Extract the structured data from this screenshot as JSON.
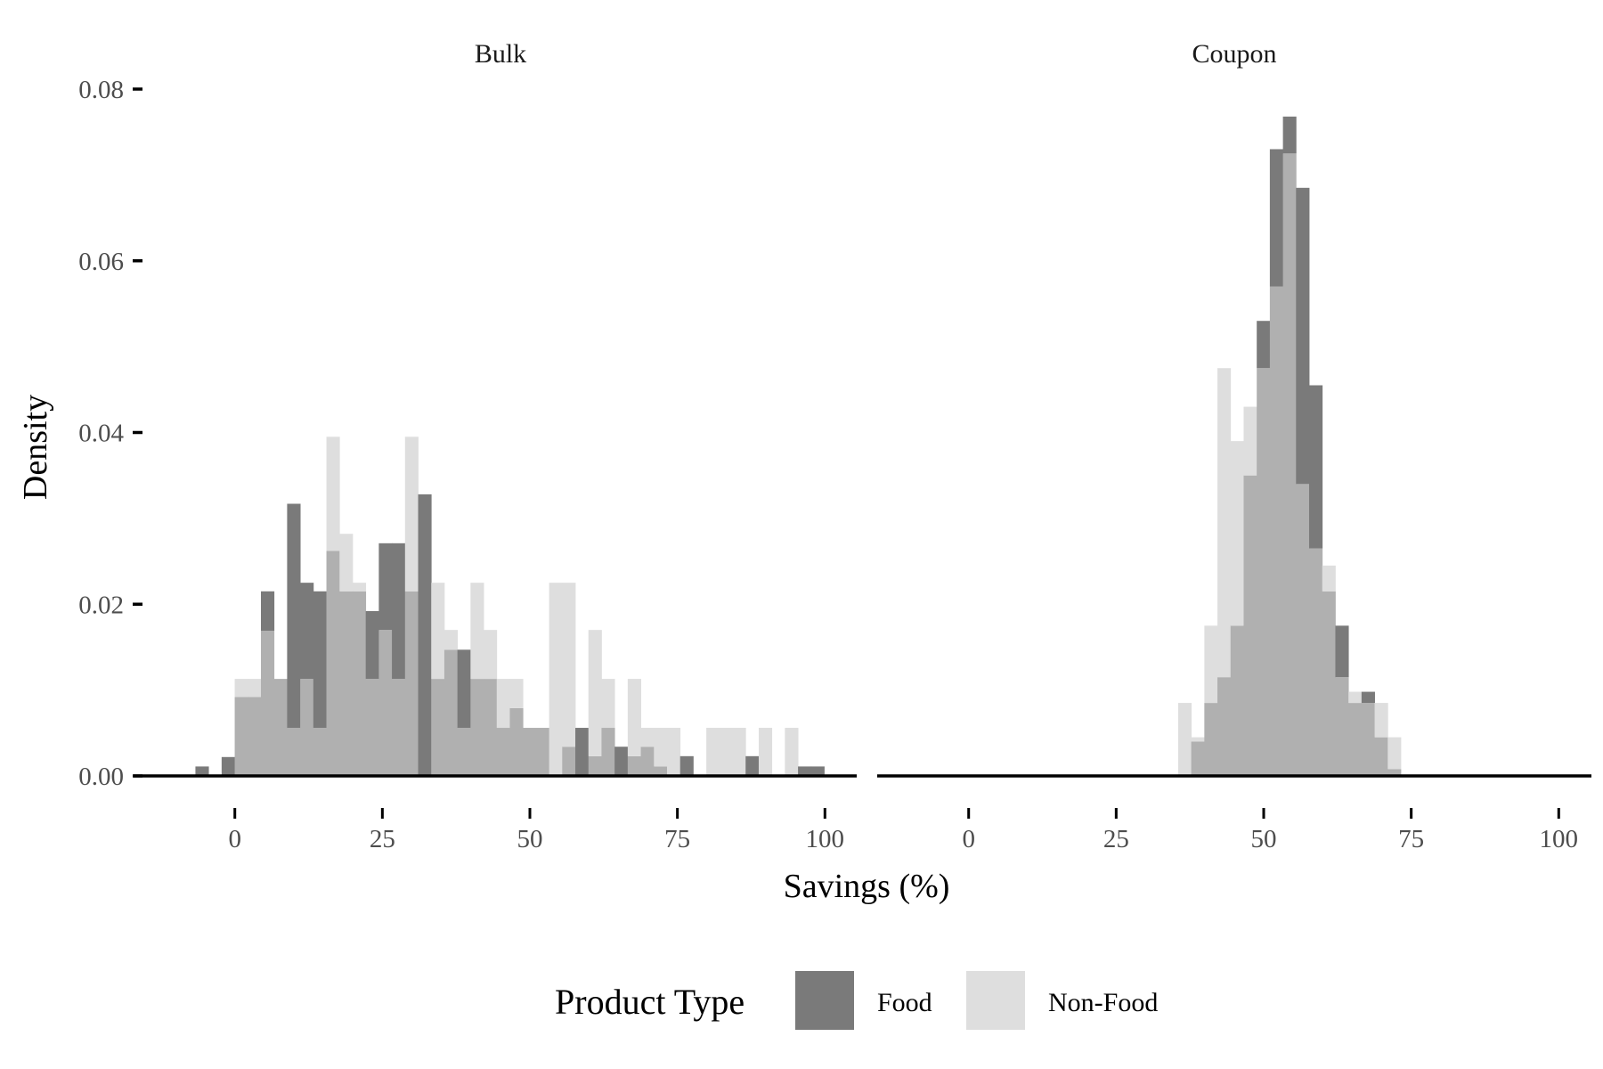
{
  "chart_data": {
    "type": "histogram",
    "xlabel": "Savings (%)",
    "ylabel": "Density",
    "xlim": [
      -17,
      105
    ],
    "ylim": [
      0,
      0.08
    ],
    "x_ticks": [
      "0",
      "25",
      "50",
      "75",
      "100"
    ],
    "x_tick_values": [
      0,
      25,
      50,
      75,
      100
    ],
    "y_ticks": [
      "0.00",
      "0.02",
      "0.04",
      "0.06",
      "0.08"
    ],
    "y_tick_values": [
      0,
      0.02,
      0.04,
      0.06,
      0.08
    ],
    "grid": false,
    "bin_width": 2.22,
    "bin_start": -8.9,
    "legend": {
      "title": "Product Type",
      "position": "bottom",
      "items": [
        {
          "label": "Food",
          "color": "#7a7a7a"
        },
        {
          "label": "Non-Food",
          "color": "#dedede"
        }
      ]
    },
    "overlap_color": "#b0b0b0",
    "facets": [
      {
        "title": "Bulk",
        "series": [
          {
            "name": "Food",
            "values": [
              0,
              0.0011,
              0,
              0.0022,
              0.0092,
              0.0092,
              0.0215,
              0.0113,
              0.0317,
              0.0225,
              0.0215,
              0.0262,
              0.0215,
              0.0215,
              0.0192,
              0.0271,
              0.0271,
              0.0215,
              0.0328,
              0.0113,
              0.0147,
              0.0147,
              0.0113,
              0.0113,
              0.0056,
              0.0079,
              0.0056,
              0.0056,
              0,
              0.0034,
              0.0056,
              0.0023,
              0.0056,
              0.0034,
              0.0023,
              0.0034,
              0.0011,
              0,
              0.0023,
              0,
              0,
              0,
              0,
              0.0023,
              0,
              0,
              0,
              0.0011,
              0.0011
            ]
          },
          {
            "name": "Non-Food",
            "values": [
              0,
              0,
              0,
              0,
              0.0113,
              0.0113,
              0.0169,
              0.0113,
              0.0056,
              0.0113,
              0.0056,
              0.0395,
              0.0282,
              0.0225,
              0.0113,
              0.017,
              0.0113,
              0.0395,
              0,
              0.0225,
              0.017,
              0.0056,
              0.0225,
              0.017,
              0.0113,
              0.0113,
              0.0056,
              0.0056,
              0.0225,
              0.0225,
              0,
              0.017,
              0.0113,
              0,
              0.0113,
              0.0056,
              0.0056,
              0.0056,
              0,
              0,
              0.0056,
              0.0056,
              0.0056,
              0,
              0.0056,
              0,
              0.0056,
              0,
              0
            ]
          }
        ]
      },
      {
        "title": "Coupon",
        "series": [
          {
            "name": "Food",
            "values": [
              0,
              0,
              0,
              0,
              0,
              0,
              0,
              0,
              0,
              0,
              0,
              0,
              0,
              0,
              0,
              0,
              0,
              0,
              0,
              0,
              0,
              0.004,
              0.0085,
              0.0115,
              0.0175,
              0.035,
              0.053,
              0.073,
              0.0768,
              0.0685,
              0.0455,
              0.0215,
              0.0175,
              0.0085,
              0.0098,
              0.0045,
              0.0008
            ]
          },
          {
            "name": "Non-Food",
            "values": [
              0,
              0,
              0,
              0,
              0,
              0,
              0,
              0,
              0,
              0,
              0,
              0,
              0,
              0,
              0,
              0,
              0,
              0,
              0,
              0,
              0.0085,
              0.0045,
              0.0175,
              0.0475,
              0.039,
              0.043,
              0.0475,
              0.057,
              0.0725,
              0.034,
              0.0265,
              0.0245,
              0.0115,
              0.0098,
              0.0085,
              0.0085,
              0.0045
            ]
          }
        ]
      }
    ]
  }
}
